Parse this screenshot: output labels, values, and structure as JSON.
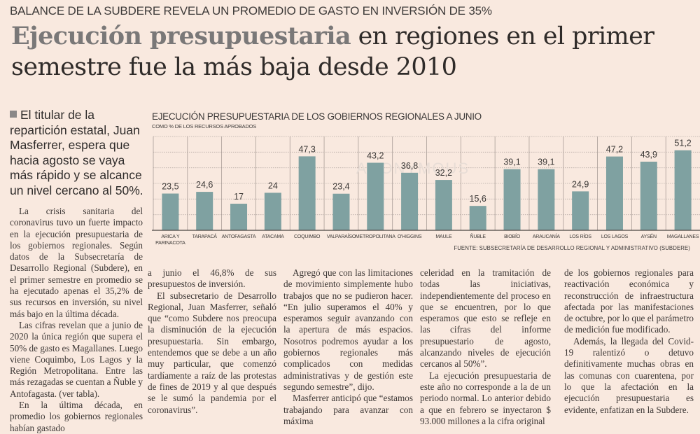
{
  "article": {
    "kicker": "BALANCE DE LA SUBDERE REVELA UN PROMEDIO DE GASTO EN INVERSIÓN DE 35%",
    "headline_bold": "Ejecución presupuestaria",
    "headline_rest": " en regiones en el primer semestre fue la más baja desde 2010",
    "deck": "El titular de la repartición estatal, Juan Masferrer, espera que hacia agosto se vaya más rápido y se alcance un nivel cercano al 50%.",
    "columns": [
      [
        "La crisis sanitaria del coronavirus tuvo un fuerte impacto en la ejecución presupuestaria de los gobiernos regionales. Según datos de la Subsecretaría de Desarrollo Regional (Subdere), en el primer semestre en promedio se ha ejecutado apenas el 35,2% de sus recursos en inversión, su nivel más bajo en la última década.",
        "Las cifras revelan que a junio de 2020 la única región que supera el 50% de gasto es Magallanes. Luego viene Coquimbo, Los Lagos y la Región Metropolitana. Entre las más rezagadas se cuentan a Ñuble y Antofagasta. (ver tabla).",
        "En la última década, en promedio los gobiernos regionales habían gastado"
      ],
      [
        "a junio el 46,8% de sus presupuestos de inversión.",
        "El subsecretario de Desarrollo Regional, Juan Masferrer, señaló que “como Subdere nos preocupa la disminución de la ejecución presupuestaria. Sin embargo, entendemos que se debe a un año muy particular, que comenzó tardíamente a raíz de las protestas de fines de 2019 y al que después se le sumó la pandemia por el coronavirus”."
      ],
      [
        "Agregó que con las limitaciones de movimiento simplemente hubo trabajos que no se pudieron hacer. “En julio superamos el 40% y esperamos seguir avanzando con la apertura de más espacios. Nosotros podremos ayudar a los gobiernos regionales más complicados con medidas administrativas y de gestión este segundo semestre”, dijo.",
        "Masferrer anticipó que “estamos trabajando para avanzar con máxima"
      ],
      [
        "celeridad en la tramitación de todas las iniciativas, independientemente del proceso en que se encuentren, por lo que esperamos que esto se refleje en las cifras del informe presupuestario de agosto, alcanzando niveles de ejecución cercanos al 50%”.",
        "La ejecución presupuestaria de este año no corresponde a la de un periodo normal. Lo anterior debido a que en febrero se inyectaron $ 93.000 millones a la cifra original"
      ],
      [
        "de los gobiernos regionales para reactivación económica y reconstrucción de infraestructura afectada por las manifestaciones de octubre, por lo que el parámetro de medición fue modificado.",
        "Además, la llegada del Covid-19 ralentizó o detuvo definitivamente muchas obras en las comunas con cuarentena, por lo que la afectación en la ejecución presupuestaria es evidente, enfatizan en la Subdere."
      ]
    ]
  },
  "colors": {
    "background": "#f9e9df",
    "bar": "#7fa1a1",
    "headline_bold": "#7a7878",
    "grid": "#b7aca6"
  },
  "chart_data": {
    "type": "bar",
    "title": "EJECUCIÓN PRESUPUESTARIA DE LOS GOBIERNOS REGIONALES A JUNIO",
    "subtitle": "COMO % DE LOS RECURSOS APROBADOS",
    "xlabel": "",
    "ylabel": "",
    "ylim": [
      0,
      60
    ],
    "grid": true,
    "categories": [
      "ARICA Y PARINACOTA",
      "TARAPACÁ",
      "ANTOFAGASTA",
      "ATACAMA",
      "COQUIMBO",
      "VALPARAÍSO",
      "METROPOLITANA",
      "O'HIGGINS",
      "MAULE",
      "ÑUBLE",
      "BIOBÍO",
      "ARAUCANÍA",
      "LOS RÍOS",
      "LOS LAGOS",
      "AYSÉN",
      "MAGALLANES"
    ],
    "values": [
      23.5,
      24.6,
      17,
      24,
      47.3,
      23.4,
      43.2,
      36.8,
      32.2,
      15.6,
      39.1,
      39.1,
      24.9,
      47.2,
      43.9,
      51.2
    ],
    "value_labels": [
      "23,5",
      "24,6",
      "17",
      "24",
      "47,3",
      "23,4",
      "43,2",
      "36,8",
      "32,2",
      "15,6",
      "39,1",
      "39,1",
      "24,9",
      "47,2",
      "43,9",
      "51,2"
    ],
    "source": "FUENTE: SUBSECRETARÍA DE DESARROLLO REGIONAL Y ADMINISTRATIVO (SUBDERE)",
    "watermark": "ANONYMOUS"
  }
}
